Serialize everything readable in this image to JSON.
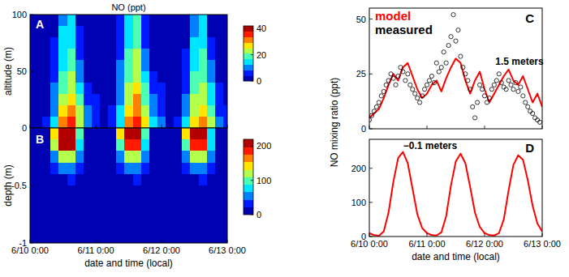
{
  "chart_data": [
    {
      "type": "heatmap",
      "title": "NO (ppt)",
      "y_label": "altitude (m)",
      "annotations": [
        "A"
      ],
      "x": [
        0,
        3,
        6,
        9,
        12,
        15,
        18,
        21,
        24,
        27,
        30,
        33,
        36,
        39,
        42,
        45,
        48,
        51,
        54,
        57,
        60,
        63,
        66,
        69,
        72
      ],
      "y": [
        5,
        15,
        25,
        35,
        45,
        55,
        65,
        75,
        85,
        95
      ],
      "cells": [
        [
          3,
          3,
          5,
          14,
          30,
          35,
          25,
          12,
          8,
          4,
          6,
          16,
          33,
          37,
          27,
          14,
          9,
          4,
          5,
          13,
          29,
          32,
          22,
          10,
          6
        ],
        [
          2,
          2,
          4,
          12,
          26,
          30,
          22,
          10,
          7,
          3,
          5,
          14,
          28,
          33,
          24,
          12,
          8,
          3,
          4,
          11,
          25,
          28,
          19,
          8,
          5
        ],
        [
          1,
          1,
          3,
          10,
          22,
          27,
          18,
          7,
          5,
          2,
          4,
          12,
          24,
          30,
          20,
          9,
          6,
          2,
          3,
          9,
          21,
          25,
          16,
          6,
          4
        ],
        [
          1,
          1,
          2,
          9,
          20,
          24,
          15,
          5,
          4,
          1,
          3,
          11,
          22,
          27,
          17,
          7,
          5,
          1,
          2,
          8,
          19,
          22,
          13,
          5,
          3
        ],
        [
          1,
          1,
          2,
          8,
          18,
          22,
          12,
          4,
          3,
          1,
          2,
          10,
          20,
          25,
          14,
          6,
          4,
          1,
          2,
          7,
          17,
          20,
          11,
          4,
          2
        ],
        [
          0,
          1,
          2,
          7,
          16,
          20,
          10,
          3,
          2,
          1,
          2,
          9,
          18,
          23,
          12,
          4,
          3,
          1,
          1,
          6,
          15,
          18,
          9,
          3,
          2
        ],
        [
          0,
          1,
          1,
          6,
          15,
          18,
          8,
          2,
          1,
          0,
          1,
          8,
          17,
          21,
          10,
          3,
          2,
          0,
          1,
          5,
          14,
          17,
          7,
          2,
          1
        ],
        [
          0,
          0,
          1,
          5,
          14,
          16,
          6,
          1,
          1,
          0,
          1,
          7,
          16,
          19,
          8,
          2,
          1,
          0,
          1,
          4,
          13,
          15,
          5,
          1,
          1
        ],
        [
          0,
          0,
          1,
          4,
          13,
          15,
          5,
          1,
          1,
          0,
          1,
          6,
          15,
          18,
          7,
          1,
          1,
          0,
          0,
          4,
          12,
          14,
          4,
          1,
          0
        ],
        [
          0,
          0,
          1,
          4,
          12,
          14,
          4,
          1,
          0,
          0,
          1,
          5,
          14,
          17,
          6,
          1,
          1,
          0,
          0,
          3,
          11,
          13,
          4,
          0,
          0
        ]
      ],
      "xlim": [
        0,
        72
      ],
      "ylim": [
        0,
        100
      ],
      "xticks": [
        0,
        24,
        48,
        72
      ],
      "yticks": [
        0,
        50,
        100
      ],
      "tick_labels": "y",
      "color_range": [
        0,
        42
      ],
      "color_ticks": [
        0,
        20,
        40
      ]
    },
    {
      "type": "heatmap",
      "x_label": "date and time (local)",
      "y_label": "depth (m)",
      "annotations": [
        "B"
      ],
      "x": [
        0,
        3,
        6,
        9,
        12,
        15,
        18,
        21,
        24,
        27,
        30,
        33,
        36,
        39,
        42,
        45,
        48,
        51,
        54,
        57,
        60,
        63,
        66,
        69,
        72
      ],
      "y": [
        -0.05,
        -0.15,
        -0.25,
        -0.35,
        -0.45,
        -0.55,
        -0.65,
        -0.75,
        -0.85,
        -0.95
      ],
      "cells": [
        [
          8,
          3,
          15,
          150,
          230,
          225,
          90,
          20,
          8,
          3,
          14,
          145,
          225,
          220,
          88,
          19,
          7,
          3,
          13,
          140,
          220,
          215,
          85,
          18,
          7
        ],
        [
          6,
          2,
          10,
          110,
          200,
          200,
          80,
          16,
          6,
          2,
          10,
          105,
          195,
          195,
          78,
          15,
          5,
          2,
          9,
          100,
          190,
          190,
          75,
          14,
          5
        ],
        [
          3,
          1,
          5,
          60,
          120,
          130,
          55,
          10,
          3,
          1,
          5,
          58,
          118,
          128,
          54,
          10,
          3,
          1,
          5,
          55,
          115,
          125,
          52,
          9,
          3
        ],
        [
          2,
          1,
          2,
          25,
          55,
          65,
          30,
          5,
          2,
          1,
          2,
          24,
          54,
          64,
          29,
          5,
          2,
          1,
          2,
          23,
          52,
          62,
          28,
          5,
          2
        ],
        [
          1,
          0,
          1,
          8,
          20,
          25,
          12,
          2,
          1,
          0,
          1,
          8,
          20,
          25,
          12,
          2,
          1,
          0,
          1,
          7,
          19,
          24,
          11,
          2,
          1
        ],
        [
          0,
          0,
          0,
          3,
          7,
          9,
          5,
          1,
          0,
          0,
          0,
          3,
          7,
          9,
          5,
          1,
          0,
          0,
          0,
          3,
          7,
          9,
          5,
          1,
          0
        ],
        [
          0,
          0,
          0,
          1,
          2,
          3,
          2,
          0,
          0,
          0,
          0,
          1,
          2,
          3,
          2,
          0,
          0,
          0,
          0,
          1,
          2,
          3,
          2,
          0,
          0
        ],
        [
          0,
          0,
          0,
          0,
          0,
          0,
          0,
          0,
          0,
          0,
          0,
          0,
          0,
          0,
          0,
          0,
          0,
          0,
          0,
          0,
          0,
          0,
          0,
          0,
          0
        ],
        [
          0,
          0,
          0,
          0,
          0,
          0,
          0,
          0,
          0,
          0,
          0,
          0,
          0,
          0,
          0,
          0,
          0,
          0,
          0,
          0,
          0,
          0,
          0,
          0,
          0
        ],
        [
          0,
          0,
          0,
          0,
          0,
          0,
          0,
          0,
          0,
          0,
          0,
          0,
          0,
          0,
          0,
          0,
          0,
          0,
          0,
          0,
          0,
          0,
          0,
          0,
          0
        ]
      ],
      "xlim": [
        0,
        72
      ],
      "ylim": [
        -1,
        0
      ],
      "xticks": [
        {
          "value": 0,
          "label": "6/10 0:00"
        },
        {
          "value": 24,
          "label": "6/11 0:00"
        },
        {
          "value": 48,
          "label": "6/12 0:00"
        },
        {
          "value": 72,
          "label": "6/13 0:00"
        }
      ],
      "yticks": [
        -1,
        -0.5
      ],
      "color_range": [
        0,
        220
      ],
      "color_ticks": [
        0,
        100,
        200
      ]
    },
    {
      "type": "line",
      "y_label": "NO mixing ratio (ppt)",
      "legend": "top-left",
      "annotations": [
        "C",
        "1.5 meters"
      ],
      "series": [
        {
          "name": "model",
          "color": "red",
          "type": "line",
          "x": [
            0,
            2,
            4,
            6,
            8,
            10,
            12,
            14,
            16,
            18,
            20,
            22,
            24,
            26,
            28,
            30,
            32,
            34,
            36,
            38,
            40,
            42,
            44,
            46,
            48,
            50,
            52,
            54,
            56,
            58,
            60,
            62,
            64,
            66,
            68,
            70,
            72
          ],
          "values": [
            5,
            7,
            9,
            14,
            20,
            25,
            22,
            28,
            30,
            24,
            18,
            14,
            16,
            20,
            22,
            17,
            23,
            28,
            32,
            30,
            22,
            16,
            22,
            26,
            18,
            12,
            16,
            20,
            24,
            27,
            22,
            20,
            24,
            18,
            12,
            16,
            10
          ]
        },
        {
          "name": "measured",
          "color": "black",
          "type": "scatter",
          "marker": "circle",
          "x": [
            0,
            1,
            2,
            3,
            4,
            5,
            6,
            7,
            8,
            9,
            10,
            11,
            12,
            13,
            14,
            15,
            16,
            17,
            18,
            19,
            20,
            21,
            22,
            23,
            24,
            25,
            26,
            27,
            28,
            29,
            30,
            31,
            32,
            33,
            34,
            35,
            36,
            37,
            38,
            39,
            40,
            41,
            42,
            43,
            44,
            45,
            46,
            47,
            48,
            49,
            50,
            51,
            52,
            53,
            54,
            55,
            56,
            57,
            58,
            59,
            60,
            61,
            62,
            63,
            64,
            65,
            66,
            67,
            68,
            69,
            70,
            71
          ],
          "values": [
            4,
            6,
            8,
            10,
            12,
            15,
            17,
            20,
            22,
            25,
            23,
            20,
            24,
            28,
            26,
            22,
            25,
            20,
            18,
            16,
            14,
            12,
            15,
            18,
            20,
            22,
            24,
            21,
            30,
            26,
            28,
            35,
            30,
            38,
            42,
            52,
            40,
            45,
            33,
            28,
            25,
            22,
            18,
            10,
            5,
            12,
            20,
            18,
            15,
            12,
            14,
            18,
            20,
            22,
            25,
            21,
            19,
            18,
            22,
            20,
            18,
            21,
            17,
            19,
            15,
            12,
            10,
            8,
            7,
            5,
            4,
            3
          ]
        }
      ],
      "xlim": [
        0,
        72
      ],
      "ylim": [
        0,
        55
      ],
      "xticks": [
        0,
        24,
        48,
        72
      ],
      "yticks": [
        0,
        25,
        50
      ],
      "tick_labels": "y"
    },
    {
      "type": "line",
      "x_label": "date and time (local)",
      "annotations": [
        "−0.1 meters",
        "D"
      ],
      "series": [
        {
          "color": "red",
          "type": "line",
          "x": [
            0,
            2,
            4,
            6,
            8,
            10,
            12,
            14,
            16,
            18,
            20,
            22,
            24,
            26,
            28,
            30,
            32,
            34,
            36,
            38,
            40,
            42,
            44,
            46,
            48,
            50,
            52,
            54,
            56,
            58,
            60,
            62,
            64,
            66,
            68,
            70,
            72
          ],
          "values": [
            10,
            4,
            2,
            15,
            70,
            160,
            230,
            248,
            215,
            140,
            65,
            25,
            10,
            4,
            3,
            12,
            60,
            150,
            220,
            243,
            215,
            145,
            70,
            28,
            10,
            4,
            3,
            10,
            50,
            135,
            210,
            238,
            225,
            165,
            90,
            38,
            15
          ]
        }
      ],
      "xlim": [
        0,
        72
      ],
      "ylim": [
        0,
        285
      ],
      "xticks": [
        {
          "value": 0,
          "label": "6/10 0:00"
        },
        {
          "value": 24,
          "label": "6/11 0:00"
        },
        {
          "value": 48,
          "label": "6/12 0:00"
        },
        {
          "value": 72,
          "label": "6/13 0:00"
        }
      ],
      "yticks": [
        0,
        100,
        200
      ]
    }
  ]
}
